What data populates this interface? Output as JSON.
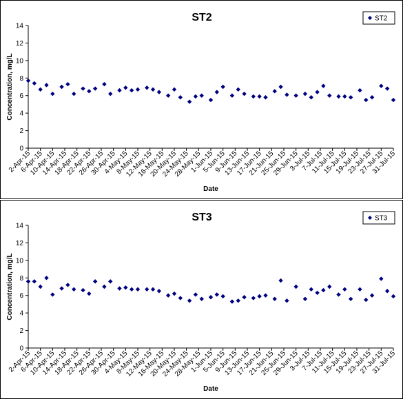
{
  "chart_data": [
    {
      "type": "scatter",
      "title": "ST2",
      "xlabel": "Date",
      "ylabel": "Concentration, mg/L",
      "ylim": [
        0,
        14
      ],
      "yticks": [
        "0",
        "2",
        "4",
        "6",
        "8",
        "10",
        "12",
        "14"
      ],
      "grid": false,
      "legend_position": "top-right",
      "x_tick_labels": [
        "2-Apr-15",
        "6-Apr-15",
        "10-Apr-15",
        "14-Apr-15",
        "18-Apr-15",
        "22-Apr-15",
        "26-Apr-15",
        "30-Apr-15",
        "4-May-15",
        "8-May-15",
        "12-May-15",
        "16-May-15",
        "20-May-15",
        "24-May-15",
        "28-May-15",
        "1-Jun-15",
        "5-Jun-15",
        "9-Jun-15",
        "13-Jun-15",
        "17-Jun-15",
        "21-Jun-15",
        "25-Jun-15",
        "29-Jun-15",
        "3-Jul-15",
        "7-Jul-15",
        "11-Jul-15",
        "15-Jul-15",
        "19-Jul-15",
        "23-Jul-15",
        "27-Jul-15",
        "31-Jul-15"
      ],
      "x_range": [
        "2-Apr-15",
        "31-Jul-15"
      ],
      "marker_color": "#000080",
      "series": [
        {
          "name": "ST2",
          "points": [
            {
              "x": "2-Apr-15",
              "y": 7.7
            },
            {
              "x": "4-Apr-15",
              "y": 7.4
            },
            {
              "x": "6-Apr-15",
              "y": 6.7
            },
            {
              "x": "8-Apr-15",
              "y": 7.2
            },
            {
              "x": "10-Apr-15",
              "y": 6.2
            },
            {
              "x": "13-Apr-15",
              "y": 7.0
            },
            {
              "x": "15-Apr-15",
              "y": 7.3
            },
            {
              "x": "17-Apr-15",
              "y": 6.2
            },
            {
              "x": "20-Apr-15",
              "y": 6.8
            },
            {
              "x": "22-Apr-15",
              "y": 6.5
            },
            {
              "x": "24-Apr-15",
              "y": 6.8
            },
            {
              "x": "27-Apr-15",
              "y": 7.3
            },
            {
              "x": "29-Apr-15",
              "y": 6.2
            },
            {
              "x": "2-May-15",
              "y": 6.6
            },
            {
              "x": "4-May-15",
              "y": 6.9
            },
            {
              "x": "6-May-15",
              "y": 6.6
            },
            {
              "x": "8-May-15",
              "y": 6.7
            },
            {
              "x": "11-May-15",
              "y": 6.9
            },
            {
              "x": "13-May-15",
              "y": 6.7
            },
            {
              "x": "15-May-15",
              "y": 6.4
            },
            {
              "x": "18-May-15",
              "y": 6.0
            },
            {
              "x": "20-May-15",
              "y": 6.7
            },
            {
              "x": "22-May-15",
              "y": 5.8
            },
            {
              "x": "25-May-15",
              "y": 5.3
            },
            {
              "x": "27-May-15",
              "y": 5.9
            },
            {
              "x": "29-May-15",
              "y": 6.0
            },
            {
              "x": "1-Jun-15",
              "y": 5.5
            },
            {
              "x": "3-Jun-15",
              "y": 6.4
            },
            {
              "x": "5-Jun-15",
              "y": 7.0
            },
            {
              "x": "8-Jun-15",
              "y": 6.0
            },
            {
              "x": "10-Jun-15",
              "y": 6.7
            },
            {
              "x": "12-Jun-15",
              "y": 6.2
            },
            {
              "x": "15-Jun-15",
              "y": 5.9
            },
            {
              "x": "17-Jun-15",
              "y": 5.9
            },
            {
              "x": "19-Jun-15",
              "y": 5.8
            },
            {
              "x": "22-Jun-15",
              "y": 6.5
            },
            {
              "x": "24-Jun-15",
              "y": 7.0
            },
            {
              "x": "26-Jun-15",
              "y": 6.1
            },
            {
              "x": "29-Jun-15",
              "y": 6.0
            },
            {
              "x": "2-Jul-15",
              "y": 6.2
            },
            {
              "x": "4-Jul-15",
              "y": 5.8
            },
            {
              "x": "6-Jul-15",
              "y": 6.4
            },
            {
              "x": "8-Jul-15",
              "y": 7.1
            },
            {
              "x": "10-Jul-15",
              "y": 6.0
            },
            {
              "x": "13-Jul-15",
              "y": 5.9
            },
            {
              "x": "15-Jul-15",
              "y": 5.9
            },
            {
              "x": "17-Jul-15",
              "y": 5.8
            },
            {
              "x": "20-Jul-15",
              "y": 6.6
            },
            {
              "x": "22-Jul-15",
              "y": 5.5
            },
            {
              "x": "24-Jul-15",
              "y": 5.8
            },
            {
              "x": "27-Jul-15",
              "y": 7.1
            },
            {
              "x": "29-Jul-15",
              "y": 6.8
            },
            {
              "x": "31-Jul-15",
              "y": 5.5
            }
          ]
        }
      ]
    },
    {
      "type": "scatter",
      "title": "ST3",
      "xlabel": "Date",
      "ylabel": "Concentration, mg/L",
      "ylim": [
        0,
        14
      ],
      "yticks": [
        "0",
        "2",
        "4",
        "6",
        "8",
        "10",
        "12",
        "14"
      ],
      "grid": false,
      "legend_position": "top-right",
      "x_tick_labels": [
        "2-Apr-15",
        "6-Apr-15",
        "10-Apr-15",
        "14-Apr-15",
        "18-Apr-15",
        "22-Apr-15",
        "26-Apr-15",
        "30-Apr-15",
        "4-May-15",
        "8-May-15",
        "12-May-15",
        "16-May-15",
        "20-May-15",
        "24-May-15",
        "28-May-15",
        "1-Jun-15",
        "5-Jun-15",
        "9-Jun-15",
        "13-Jun-15",
        "17-Jun-15",
        "21-Jun-15",
        "25-Jun-15",
        "29-Jun-15",
        "3-Jul-15",
        "7-Jul-15",
        "11-Jul-15",
        "15-Jul-15",
        "19-Jul-15",
        "23-Jul-15",
        "27-Jul-15",
        "31-Jul-15"
      ],
      "x_range": [
        "2-Apr-15",
        "31-Jul-15"
      ],
      "marker_color": "#000080",
      "series": [
        {
          "name": "ST3",
          "points": [
            {
              "x": "2-Apr-15",
              "y": 7.6
            },
            {
              "x": "4-Apr-15",
              "y": 7.6
            },
            {
              "x": "6-Apr-15",
              "y": 7.0
            },
            {
              "x": "8-Apr-15",
              "y": 8.0
            },
            {
              "x": "10-Apr-15",
              "y": 6.1
            },
            {
              "x": "13-Apr-15",
              "y": 6.8
            },
            {
              "x": "15-Apr-15",
              "y": 7.2
            },
            {
              "x": "17-Apr-15",
              "y": 6.7
            },
            {
              "x": "20-Apr-15",
              "y": 6.6
            },
            {
              "x": "22-Apr-15",
              "y": 6.2
            },
            {
              "x": "24-Apr-15",
              "y": 7.6
            },
            {
              "x": "27-Apr-15",
              "y": 7.0
            },
            {
              "x": "29-Apr-15",
              "y": 7.6
            },
            {
              "x": "2-May-15",
              "y": 6.8
            },
            {
              "x": "4-May-15",
              "y": 6.9
            },
            {
              "x": "6-May-15",
              "y": 6.7
            },
            {
              "x": "8-May-15",
              "y": 6.7
            },
            {
              "x": "11-May-15",
              "y": 6.7
            },
            {
              "x": "13-May-15",
              "y": 6.7
            },
            {
              "x": "15-May-15",
              "y": 6.5
            },
            {
              "x": "18-May-15",
              "y": 6.0
            },
            {
              "x": "20-May-15",
              "y": 6.2
            },
            {
              "x": "22-May-15",
              "y": 5.7
            },
            {
              "x": "25-May-15",
              "y": 5.4
            },
            {
              "x": "27-May-15",
              "y": 6.1
            },
            {
              "x": "29-May-15",
              "y": 5.6
            },
            {
              "x": "1-Jun-15",
              "y": 5.8
            },
            {
              "x": "3-Jun-15",
              "y": 6.1
            },
            {
              "x": "5-Jun-15",
              "y": 5.9
            },
            {
              "x": "8-Jun-15",
              "y": 5.3
            },
            {
              "x": "10-Jun-15",
              "y": 5.4
            },
            {
              "x": "12-Jun-15",
              "y": 5.8
            },
            {
              "x": "15-Jun-15",
              "y": 5.7
            },
            {
              "x": "17-Jun-15",
              "y": 5.9
            },
            {
              "x": "19-Jun-15",
              "y": 6.0
            },
            {
              "x": "22-Jun-15",
              "y": 5.6
            },
            {
              "x": "24-Jun-15",
              "y": 7.7
            },
            {
              "x": "26-Jun-15",
              "y": 5.4
            },
            {
              "x": "29-Jun-15",
              "y": 7.0
            },
            {
              "x": "2-Jul-15",
              "y": 5.6
            },
            {
              "x": "4-Jul-15",
              "y": 6.7
            },
            {
              "x": "6-Jul-15",
              "y": 6.3
            },
            {
              "x": "8-Jul-15",
              "y": 6.6
            },
            {
              "x": "10-Jul-15",
              "y": 7.0
            },
            {
              "x": "13-Jul-15",
              "y": 6.1
            },
            {
              "x": "15-Jul-15",
              "y": 6.7
            },
            {
              "x": "17-Jul-15",
              "y": 5.6
            },
            {
              "x": "20-Jul-15",
              "y": 6.7
            },
            {
              "x": "22-Jul-15",
              "y": 5.5
            },
            {
              "x": "24-Jul-15",
              "y": 6.0
            },
            {
              "x": "27-Jul-15",
              "y": 7.9
            },
            {
              "x": "29-Jul-15",
              "y": 6.5
            },
            {
              "x": "31-Jul-15",
              "y": 5.9
            }
          ]
        }
      ]
    }
  ]
}
